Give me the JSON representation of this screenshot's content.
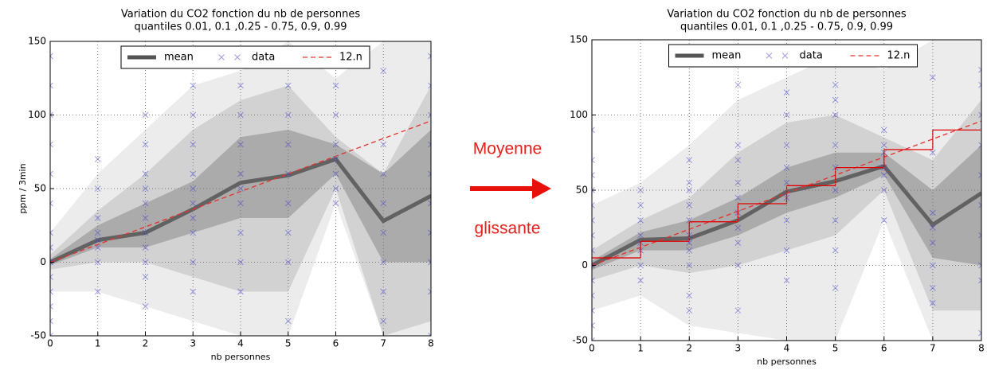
{
  "chart_data": [
    {
      "type": "line",
      "title": [
        "Variation du CO2 fonction du nb de personnes",
        "quantiles 0.01, 0.1 ,0.25 - 0.75, 0.9, 0.99"
      ],
      "xlabel": "nb personnes",
      "ylabel": "ppm / 3min",
      "x": [
        0,
        1,
        2,
        3,
        4,
        5,
        6,
        7,
        8
      ],
      "xlim": [
        0,
        8
      ],
      "ylim": [
        -50,
        150
      ],
      "xticks": [
        0,
        1,
        2,
        3,
        4,
        5,
        6,
        7,
        8
      ],
      "yticks": [
        -50,
        0,
        50,
        100,
        150
      ],
      "grid": true,
      "legend": "upper center",
      "bands": [
        {
          "color": "#ececec",
          "lower": [
            -20,
            -20,
            -30,
            -40,
            -50,
            -50,
            40,
            -50,
            -50
          ],
          "upper": [
            20,
            60,
            90,
            120,
            130,
            150,
            125,
            150,
            150
          ]
        },
        {
          "color": "#d2d2d2",
          "lower": [
            -5,
            0,
            0,
            -10,
            -20,
            -20,
            50,
            -50,
            -40
          ],
          "upper": [
            5,
            35,
            60,
            90,
            110,
            120,
            85,
            60,
            120
          ]
        },
        {
          "color": "#ababab",
          "lower": [
            -2,
            10,
            10,
            20,
            30,
            30,
            60,
            0,
            0
          ],
          "upper": [
            2,
            25,
            40,
            55,
            85,
            90,
            80,
            60,
            90
          ]
        }
      ],
      "series": [
        {
          "name": "mean",
          "color": "#555555",
          "style": "thick",
          "values": [
            0,
            15,
            20,
            36,
            54,
            59,
            70,
            28,
            45
          ]
        },
        {
          "name": "data",
          "color": "#3b3bd8",
          "style": "cross",
          "x": [
            0,
            0,
            0,
            0,
            0,
            0,
            0,
            0,
            0,
            0,
            0,
            0,
            0,
            0,
            1,
            1,
            1,
            1,
            1,
            1,
            1,
            1,
            2,
            2,
            2,
            2,
            2,
            2,
            2,
            2,
            2,
            2,
            2,
            3,
            3,
            3,
            3,
            3,
            3,
            3,
            3,
            3,
            3,
            4,
            4,
            4,
            4,
            4,
            4,
            4,
            4,
            4,
            5,
            5,
            5,
            5,
            5,
            5,
            5,
            5,
            5,
            6,
            6,
            6,
            6,
            6,
            6,
            6,
            7,
            7,
            7,
            7,
            7,
            7,
            7,
            7,
            8,
            8,
            8,
            8,
            8,
            8,
            8,
            8,
            8,
            8
          ],
          "values": [
            -50,
            -40,
            -30,
            -20,
            -10,
            0,
            10,
            20,
            40,
            60,
            80,
            100,
            120,
            140,
            -20,
            0,
            10,
            15,
            20,
            30,
            50,
            70,
            -30,
            -10,
            0,
            10,
            20,
            30,
            40,
            50,
            60,
            80,
            100,
            -20,
            0,
            20,
            30,
            40,
            50,
            60,
            80,
            100,
            120,
            -20,
            0,
            20,
            40,
            50,
            60,
            80,
            100,
            120,
            -40,
            0,
            20,
            40,
            60,
            80,
            100,
            120,
            140,
            40,
            50,
            60,
            70,
            80,
            100,
            120,
            -40,
            -20,
            0,
            20,
            40,
            60,
            80,
            130,
            -50,
            -20,
            0,
            20,
            40,
            60,
            80,
            100,
            120,
            140
          ]
        },
        {
          "name": "12.n",
          "color": "#e8302a",
          "style": "dashed",
          "values": [
            0,
            12,
            24,
            36,
            48,
            60,
            72,
            84,
            96
          ]
        }
      ]
    },
    {
      "type": "line",
      "title": [
        "Variation du CO2 fonction du nb de personnes",
        "quantiles 0.01, 0.1 ,0.25 - 0.75, 0.9, 0.99"
      ],
      "xlabel": "nb personnes",
      "x": [
        0,
        1,
        2,
        3,
        4,
        5,
        6,
        7,
        8
      ],
      "xlim": [
        0,
        8
      ],
      "ylim": [
        -50,
        150
      ],
      "xticks": [
        0,
        1,
        2,
        3,
        4,
        5,
        6,
        7,
        8
      ],
      "yticks": [
        -50,
        0,
        50,
        100,
        150
      ],
      "grid": true,
      "legend": "upper center",
      "bands": [
        {
          "color": "#ececec",
          "lower": [
            -30,
            -20,
            -40,
            -45,
            -50,
            -50,
            30,
            -50,
            -50
          ],
          "upper": [
            40,
            55,
            80,
            110,
            125,
            140,
            130,
            150,
            150
          ]
        },
        {
          "color": "#d2d2d2",
          "lower": [
            -10,
            0,
            -5,
            0,
            10,
            20,
            50,
            -30,
            -30
          ],
          "upper": [
            10,
            30,
            45,
            75,
            95,
            100,
            85,
            70,
            110
          ]
        },
        {
          "color": "#ababab",
          "lower": [
            -3,
            10,
            10,
            20,
            35,
            45,
            60,
            5,
            0
          ],
          "upper": [
            3,
            22,
            30,
            45,
            65,
            75,
            75,
            50,
            80
          ]
        }
      ],
      "series": [
        {
          "name": "mean",
          "color": "#555555",
          "style": "thick",
          "values": [
            0,
            17,
            18,
            30,
            49,
            56,
            66,
            27,
            48
          ]
        },
        {
          "name": "data",
          "color": "#3b3bd8",
          "style": "cross",
          "x": [
            0,
            0,
            0,
            0,
            0,
            0,
            0,
            0,
            0,
            0,
            0,
            0,
            0,
            0,
            1,
            1,
            1,
            1,
            1,
            1,
            1,
            1,
            2,
            2,
            2,
            2,
            2,
            2,
            2,
            2,
            2,
            2,
            2,
            3,
            3,
            3,
            3,
            3,
            3,
            3,
            3,
            3,
            3,
            4,
            4,
            4,
            4,
            4,
            4,
            4,
            4,
            4,
            5,
            5,
            5,
            5,
            5,
            5,
            5,
            5,
            5,
            6,
            6,
            6,
            6,
            6,
            6,
            6,
            7,
            7,
            7,
            7,
            7,
            7,
            7,
            7,
            8,
            8,
            8,
            8,
            8,
            8,
            8,
            8,
            8,
            8
          ],
          "values": [
            -50,
            -40,
            -30,
            -20,
            -10,
            0,
            10,
            20,
            30,
            40,
            50,
            60,
            70,
            90,
            -10,
            0,
            10,
            15,
            20,
            30,
            40,
            50,
            -30,
            -20,
            0,
            10,
            15,
            20,
            30,
            40,
            50,
            55,
            70,
            -30,
            0,
            15,
            25,
            35,
            45,
            55,
            70,
            80,
            120,
            -10,
            10,
            30,
            45,
            55,
            65,
            80,
            100,
            115,
            -15,
            10,
            30,
            50,
            65,
            80,
            100,
            110,
            120,
            30,
            50,
            60,
            65,
            75,
            80,
            90,
            -25,
            -15,
            0,
            15,
            25,
            35,
            75,
            125,
            -45,
            -10,
            0,
            20,
            40,
            60,
            80,
            100,
            120,
            130
          ]
        },
        {
          "name": "12.n",
          "color": "#e8302a",
          "style": "dashed",
          "values": [
            0,
            12,
            24,
            36,
            48,
            60,
            72,
            84,
            96
          ]
        }
      ],
      "steps": {
        "color": "#e00000",
        "edges": [
          0,
          1,
          2,
          3,
          4,
          5,
          6,
          7,
          8
        ],
        "values": [
          5,
          16,
          29,
          41,
          53,
          65,
          77,
          90
        ]
      }
    }
  ],
  "annotation": {
    "line1": "Moyenne",
    "line2": "glissante"
  }
}
